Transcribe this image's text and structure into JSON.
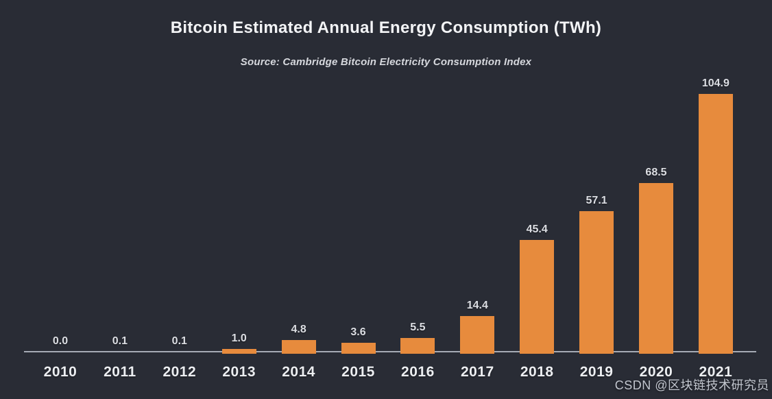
{
  "header": {
    "title": "Bitcoin Estimated Annual Energy Consumption (TWh)",
    "source": "Source: Cambridge Bitcoin Electricity Consumption Index"
  },
  "watermark": {
    "text": "CSDN @区块链技术研究员"
  },
  "colors": {
    "background": "#292c35",
    "bar": "#e78b3d",
    "axis_line": "#a6abb5",
    "title_text": "#f3f4f6",
    "label_text": "#dcdee3"
  },
  "chart_data": {
    "type": "bar",
    "title": "Bitcoin Estimated Annual Energy Consumption (TWh)",
    "subtitle": "Source: Cambridge Bitcoin Electricity Consumption Index",
    "categories": [
      "2010",
      "2011",
      "2012",
      "2013",
      "2014",
      "2015",
      "2016",
      "2017",
      "2018",
      "2019",
      "2020",
      "2021"
    ],
    "values": [
      0.0,
      0.1,
      0.1,
      1.0,
      4.8,
      3.6,
      5.5,
      14.4,
      45.4,
      57.1,
      68.5,
      104.9
    ],
    "value_labels": [
      "0.0",
      "0.1",
      "0.1",
      "1.0",
      "4.8",
      "3.6",
      "5.5",
      "14.4",
      "45.4",
      "57.1",
      "68.5",
      "104.9"
    ],
    "xlabel": "",
    "ylabel": "",
    "ylim": [
      0,
      110
    ],
    "grid": false,
    "legend": false,
    "bar_color": "#e78b3d",
    "data_labels": "above-bars",
    "x_axis_labels": "below-baseline"
  }
}
